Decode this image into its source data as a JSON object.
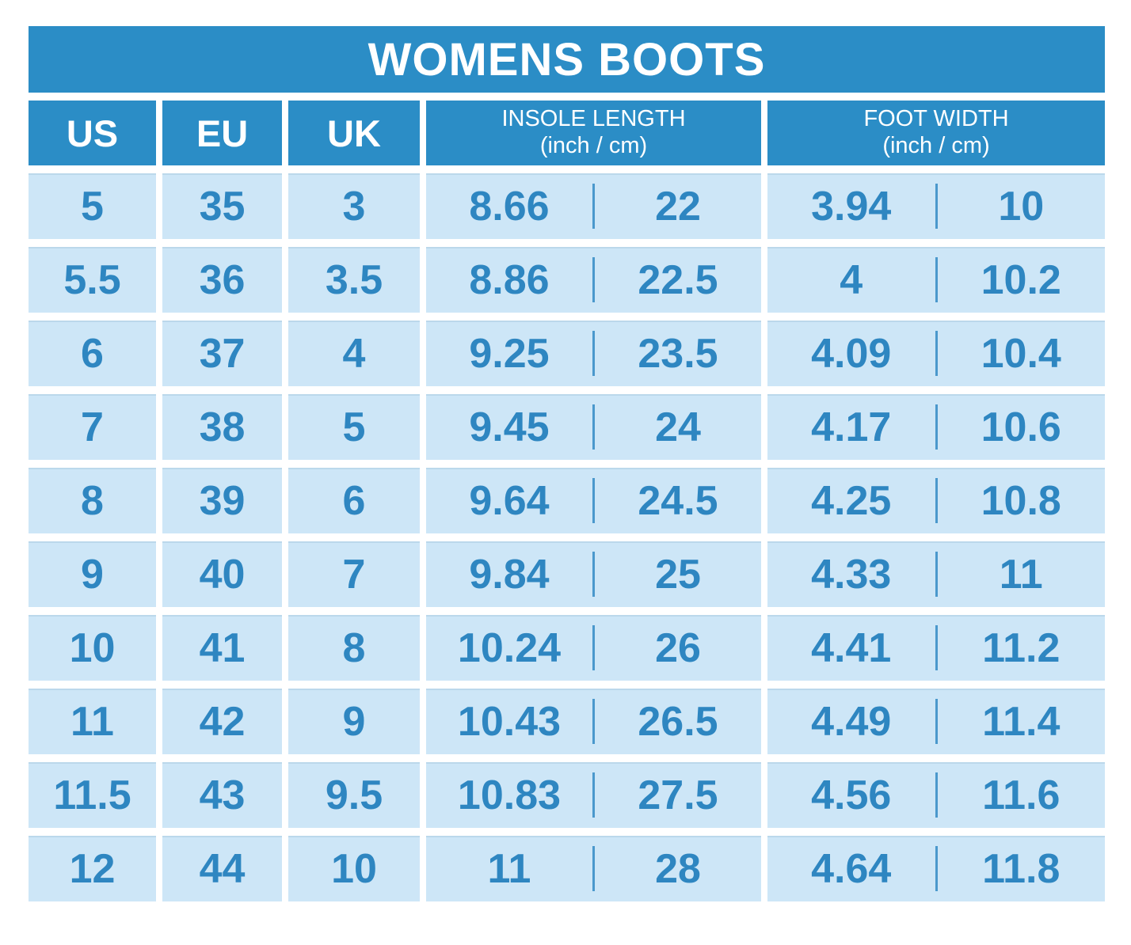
{
  "chart_data": {
    "type": "table",
    "title": "WOMENS BOOTS",
    "size_columns": [
      "US",
      "EU",
      "UK"
    ],
    "measure_columns": [
      {
        "label": "INSOLE LENGTH",
        "unit": "(inch / cm)"
      },
      {
        "label": "FOOT WIDTH",
        "unit": "(inch / cm)"
      }
    ],
    "rows": [
      {
        "us": "5",
        "eu": "35",
        "uk": "3",
        "insole_inch": "8.66",
        "insole_cm": "22",
        "width_inch": "3.94",
        "width_cm": "10"
      },
      {
        "us": "5.5",
        "eu": "36",
        "uk": "3.5",
        "insole_inch": "8.86",
        "insole_cm": "22.5",
        "width_inch": "4",
        "width_cm": "10.2"
      },
      {
        "us": "6",
        "eu": "37",
        "uk": "4",
        "insole_inch": "9.25",
        "insole_cm": "23.5",
        "width_inch": "4.09",
        "width_cm": "10.4"
      },
      {
        "us": "7",
        "eu": "38",
        "uk": "5",
        "insole_inch": "9.45",
        "insole_cm": "24",
        "width_inch": "4.17",
        "width_cm": "10.6"
      },
      {
        "us": "8",
        "eu": "39",
        "uk": "6",
        "insole_inch": "9.64",
        "insole_cm": "24.5",
        "width_inch": "4.25",
        "width_cm": "10.8"
      },
      {
        "us": "9",
        "eu": "40",
        "uk": "7",
        "insole_inch": "9.84",
        "insole_cm": "25",
        "width_inch": "4.33",
        "width_cm": "11"
      },
      {
        "us": "10",
        "eu": "41",
        "uk": "8",
        "insole_inch": "10.24",
        "insole_cm": "26",
        "width_inch": "4.41",
        "width_cm": "11.2"
      },
      {
        "us": "11",
        "eu": "42",
        "uk": "9",
        "insole_inch": "10.43",
        "insole_cm": "26.5",
        "width_inch": "4.49",
        "width_cm": "11.4"
      },
      {
        "us": "11.5",
        "eu": "43",
        "uk": "9.5",
        "insole_inch": "10.83",
        "insole_cm": "27.5",
        "width_inch": "4.56",
        "width_cm": "11.6"
      },
      {
        "us": "12",
        "eu": "44",
        "uk": "10",
        "insole_inch": "11",
        "insole_cm": "28",
        "width_inch": "4.64",
        "width_cm": "11.8"
      }
    ]
  },
  "colors": {
    "header_blue": "#2b8dc6",
    "light_cell": "#cde6f7",
    "value_text": "#2e86c1",
    "divider": "#4a98cc",
    "header_text": "#ffffff",
    "background": "#ffffff"
  }
}
